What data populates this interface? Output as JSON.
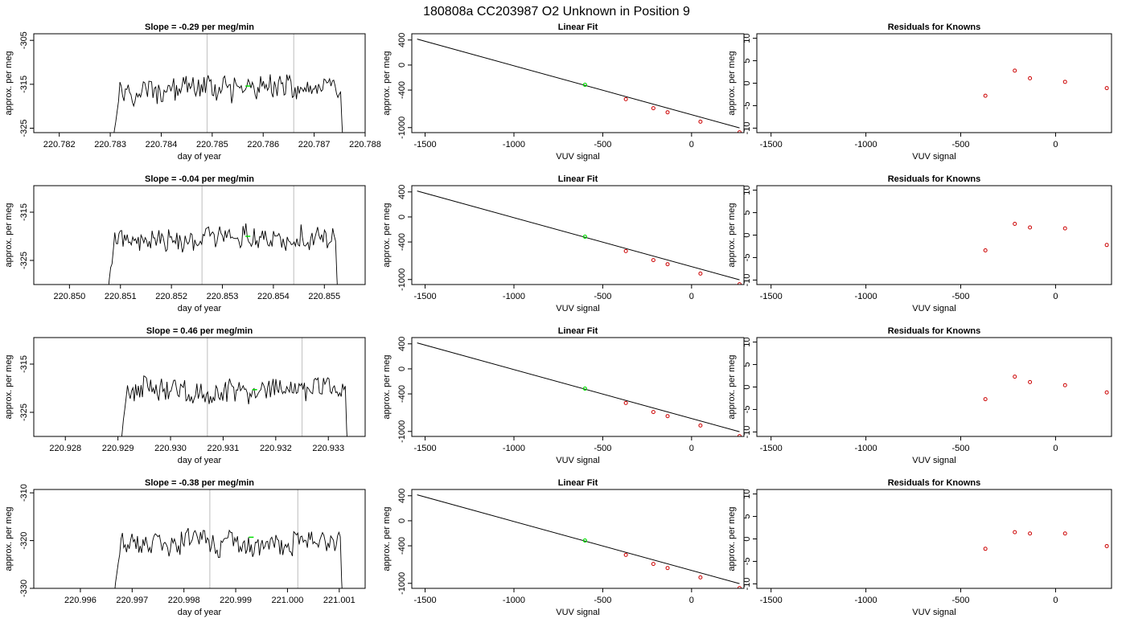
{
  "figure_title": "180808a     CC203987   O2 Unknown in Position  9",
  "chart_data": [
    {
      "row": 0,
      "panel": "time_series",
      "type": "line",
      "title": "Slope =  -0.29  per meg/min",
      "xlabel": "day of year",
      "ylabel": "approx. per meg",
      "xlim": [
        220.7815,
        220.788
      ],
      "ylim": [
        -326,
        -303.5
      ],
      "xticks": [
        "220.782",
        "220.783",
        "220.784",
        "220.785",
        "220.786",
        "220.787",
        "220.788"
      ],
      "yticks": [
        "-305",
        "-315",
        "-325"
      ],
      "data_start": 220.783,
      "data_end": 220.7876,
      "data_mean": -316.0,
      "vlines": [
        220.7849,
        220.7866
      ],
      "marker": {
        "x": 220.7857,
        "y": -315.4,
        "color": "#00dd00"
      }
    },
    {
      "row": 0,
      "panel": "linear_fit",
      "type": "scatter",
      "title": "Linear Fit",
      "xlabel": "VUV signal",
      "ylabel": "approx. per meg",
      "xlim": [
        -1575,
        295
      ],
      "ylim": [
        -1080,
        500
      ],
      "xticks": [
        "-1500",
        "-1000",
        "-500",
        "0"
      ],
      "yticks": [
        "400",
        "0",
        "-400",
        "-1000"
      ],
      "fit_line": {
        "x": [
          -1545,
          270
        ],
        "y": [
          415,
          -1005
        ]
      },
      "knowns": {
        "x": [
          -370,
          -215,
          -135,
          50,
          270
        ],
        "y": [
          -545,
          -690,
          -755,
          -905,
          -1075
        ],
        "color": "#cc0000"
      },
      "unknown": {
        "x": [
          -600
        ],
        "y": [
          -315
        ],
        "color": "#00dd00"
      }
    },
    {
      "row": 0,
      "panel": "residuals",
      "type": "scatter",
      "title": "Residuals for Knowns",
      "xlabel": "VUV signal",
      "ylabel": "approx. per meg",
      "xlim": [
        -1575,
        295
      ],
      "ylim": [
        -11,
        11
      ],
      "xticks": [
        "-1500",
        "-1000",
        "-500",
        "0"
      ],
      "yticks": [
        "10",
        "5",
        "0",
        "-5",
        "-10"
      ],
      "residuals": {
        "x": [
          -370,
          -215,
          -135,
          50,
          270
        ],
        "y": [
          -2.8,
          2.8,
          1.1,
          0.3,
          -1.1
        ],
        "color": "#cc0000"
      }
    },
    {
      "row": 1,
      "panel": "time_series",
      "type": "line",
      "title": "Slope =  -0.04  per meg/min",
      "xlabel": "day of year",
      "ylabel": "approx. per meg",
      "xlim": [
        220.8493,
        220.8558
      ],
      "ylim": [
        -330,
        -309.5
      ],
      "xticks": [
        "220.850",
        "220.851",
        "220.852",
        "220.853",
        "220.854",
        "220.855"
      ],
      "yticks": [
        "-315",
        "-325"
      ],
      "data_start": 220.8507,
      "data_end": 220.8553,
      "data_mean": -320.5,
      "vlines": [
        220.8526,
        220.8544
      ],
      "marker": {
        "x": 220.8535,
        "y": -320.0,
        "color": "#00dd00"
      }
    },
    {
      "row": 1,
      "panel": "linear_fit",
      "type": "scatter",
      "title": "Linear Fit",
      "xlabel": "VUV signal",
      "ylabel": "approx. per meg",
      "xlim": [
        -1575,
        295
      ],
      "ylim": [
        -1080,
        500
      ],
      "xticks": [
        "-1500",
        "-1000",
        "-500",
        "0"
      ],
      "yticks": [
        "400",
        "0",
        "-400",
        "-1000"
      ],
      "fit_line": {
        "x": [
          -1545,
          270
        ],
        "y": [
          415,
          -1005
        ]
      },
      "knowns": {
        "x": [
          -370,
          -215,
          -135,
          50,
          270
        ],
        "y": [
          -545,
          -690,
          -755,
          -905,
          -1075
        ],
        "color": "#cc0000"
      },
      "unknown": {
        "x": [
          -600
        ],
        "y": [
          -315
        ],
        "color": "#00dd00"
      }
    },
    {
      "row": 1,
      "panel": "residuals",
      "type": "scatter",
      "title": "Residuals for Knowns",
      "xlabel": "VUV signal",
      "ylabel": "approx. per meg",
      "xlim": [
        -1575,
        295
      ],
      "ylim": [
        -11,
        11
      ],
      "xticks": [
        "-1500",
        "-1000",
        "-500",
        "0"
      ],
      "yticks": [
        "10",
        "5",
        "0",
        "-5",
        "-10"
      ],
      "residuals": {
        "x": [
          -370,
          -215,
          -135,
          50,
          270
        ],
        "y": [
          -3.4,
          2.5,
          1.7,
          1.5,
          -2.2
        ],
        "color": "#cc0000"
      }
    },
    {
      "row": 2,
      "panel": "time_series",
      "type": "line",
      "title": "Slope =  0.46  per meg/min",
      "xlabel": "day of year",
      "ylabel": "approx. per meg",
      "xlim": [
        220.9274,
        220.9337
      ],
      "ylim": [
        -330,
        -309.5
      ],
      "xticks": [
        "220.928",
        "220.929",
        "220.930",
        "220.931",
        "220.932",
        "220.933"
      ],
      "yticks": [
        "-315",
        "-325"
      ],
      "data_start": 220.929,
      "data_end": 220.9334,
      "data_mean": -320.5,
      "vlines": [
        220.9307,
        220.9325
      ],
      "marker": {
        "x": 220.9316,
        "y": -320.3,
        "color": "#00dd00"
      }
    },
    {
      "row": 2,
      "panel": "linear_fit",
      "type": "scatter",
      "title": "Linear Fit",
      "xlabel": "VUV signal",
      "ylabel": "approx. per meg",
      "xlim": [
        -1575,
        295
      ],
      "ylim": [
        -1080,
        500
      ],
      "xticks": [
        "-1500",
        "-1000",
        "-500",
        "0"
      ],
      "yticks": [
        "400",
        "0",
        "-400",
        "-1000"
      ],
      "fit_line": {
        "x": [
          -1545,
          270
        ],
        "y": [
          415,
          -1005
        ]
      },
      "knowns": {
        "x": [
          -370,
          -215,
          -135,
          50,
          270
        ],
        "y": [
          -545,
          -690,
          -755,
          -905,
          -1075
        ],
        "color": "#cc0000"
      },
      "unknown": {
        "x": [
          -600
        ],
        "y": [
          -315
        ],
        "color": "#00dd00"
      }
    },
    {
      "row": 2,
      "panel": "residuals",
      "type": "scatter",
      "title": "Residuals for Knowns",
      "xlabel": "VUV signal",
      "ylabel": "approx. per meg",
      "xlim": [
        -1575,
        295
      ],
      "ylim": [
        -11,
        11
      ],
      "xticks": [
        "-1500",
        "-1000",
        "-500",
        "0"
      ],
      "yticks": [
        "10",
        "5",
        "0",
        "-5",
        "-10"
      ],
      "residuals": {
        "x": [
          -370,
          -215,
          -135,
          50,
          270
        ],
        "y": [
          -2.7,
          2.3,
          1.1,
          0.4,
          -1.2
        ],
        "color": "#cc0000"
      }
    },
    {
      "row": 3,
      "panel": "time_series",
      "type": "line",
      "title": "Slope =  -0.38  per meg/min",
      "xlabel": "day of year",
      "ylabel": "approx. per meg",
      "xlim": [
        220.9951,
        221.0015
      ],
      "ylim": [
        -330,
        -309.3
      ],
      "xticks": [
        "220.996",
        "220.997",
        "220.998",
        "220.999",
        "221.000",
        "221.001"
      ],
      "yticks": [
        "-310",
        "-320",
        "-330"
      ],
      "data_start": 220.9966,
      "data_end": 221.0011,
      "data_mean": -320.5,
      "vlines": [
        220.9985,
        221.0002
      ],
      "marker": {
        "x": 220.9993,
        "y": -319.3,
        "color": "#00dd00"
      }
    },
    {
      "row": 3,
      "panel": "linear_fit",
      "type": "scatter",
      "title": "Linear Fit",
      "xlabel": "VUV signal",
      "ylabel": "approx. per meg",
      "xlim": [
        -1575,
        295
      ],
      "ylim": [
        -1080,
        500
      ],
      "xticks": [
        "-1500",
        "-1000",
        "-500",
        "0"
      ],
      "yticks": [
        "400",
        "0",
        "-400",
        "-1000"
      ],
      "fit_line": {
        "x": [
          -1545,
          270
        ],
        "y": [
          415,
          -1005
        ]
      },
      "knowns": {
        "x": [
          -370,
          -215,
          -135,
          50,
          270
        ],
        "y": [
          -545,
          -690,
          -755,
          -905,
          -1075
        ],
        "color": "#cc0000"
      },
      "unknown": {
        "x": [
          -600
        ],
        "y": [
          -315
        ],
        "color": "#00dd00"
      }
    },
    {
      "row": 3,
      "panel": "residuals",
      "type": "scatter",
      "title": "Residuals for Knowns",
      "xlabel": "VUV signal",
      "ylabel": "approx. per meg",
      "xlim": [
        -1575,
        295
      ],
      "ylim": [
        -11,
        11
      ],
      "xticks": [
        "-1500",
        "-1000",
        "-500",
        "0"
      ],
      "yticks": [
        "10",
        "5",
        "0",
        "-5",
        "-10"
      ],
      "residuals": {
        "x": [
          -370,
          -215,
          -135,
          50,
          270
        ],
        "y": [
          -2.2,
          1.5,
          1.2,
          1.2,
          -1.6
        ],
        "color": "#cc0000"
      }
    }
  ]
}
